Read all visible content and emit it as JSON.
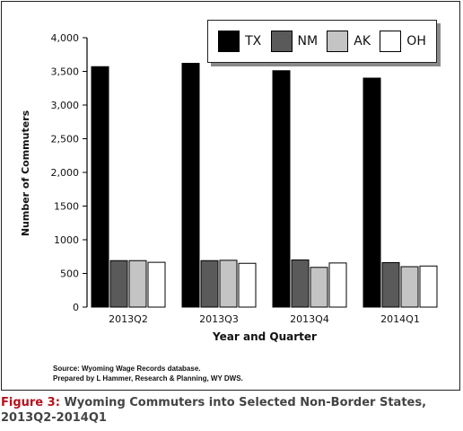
{
  "chart_data": {
    "type": "bar",
    "title": "",
    "xlabel": "Year and Quarter",
    "ylabel": "Number of Commuters",
    "ylim": [
      0,
      4000
    ],
    "yticks": [
      "0",
      "500",
      "1000",
      "1500",
      "2,000",
      "2,500",
      "3,000",
      "3,500",
      "4,000"
    ],
    "ytick_values": [
      0,
      500,
      1000,
      1500,
      2000,
      2500,
      3000,
      3500,
      4000
    ],
    "categories": [
      "2013Q2",
      "2013Q3",
      "2013Q4",
      "2014Q1"
    ],
    "series": [
      {
        "name": "TX",
        "color": "#000000",
        "values": [
          3570,
          3620,
          3510,
          3400
        ]
      },
      {
        "name": "NM",
        "color": "#5a5a5a",
        "values": [
          690,
          690,
          700,
          660
        ]
      },
      {
        "name": "AK",
        "color": "#c4c4c4",
        "values": [
          690,
          695,
          590,
          600
        ]
      },
      {
        "name": "OH",
        "color": "#ffffff",
        "values": [
          665,
          650,
          655,
          610
        ]
      }
    ],
    "legend_position": "top-right",
    "grid": false
  },
  "source": {
    "line1": "Source: Wyoming Wage Records database.",
    "line2": "Prepared by L Hammer, Research & Planning, WY DWS."
  },
  "caption": {
    "figure_label": "Figure 3:",
    "text": "Wyoming Commuters into Selected Non-Border States, 2013Q2-2014Q1"
  }
}
